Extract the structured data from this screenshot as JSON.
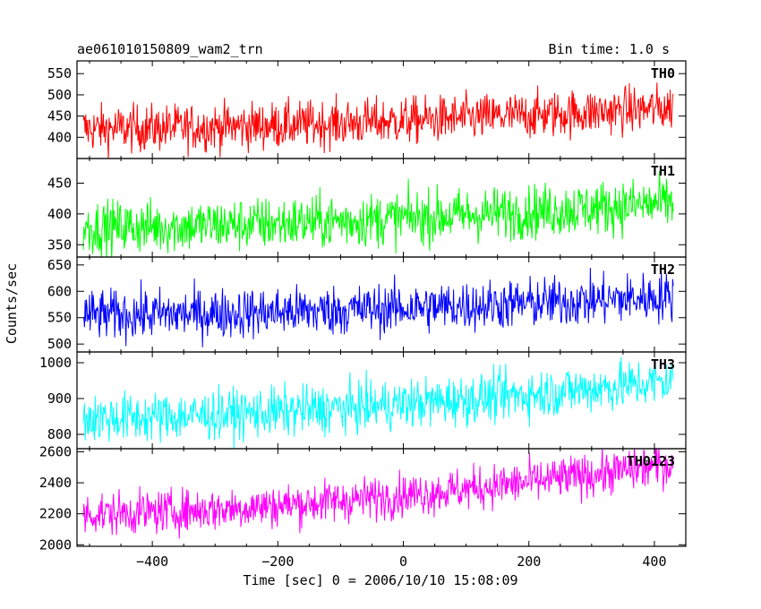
{
  "title_left": "ae061010150809_wam2_trn",
  "title_right": "Bin time: 1.0 s",
  "ylabel": "Counts/sec",
  "xlabel": "Time [sec] 0 = 2006/10/10 15:08:09",
  "chart_data": {
    "type": "line",
    "xlim": [
      -520,
      450
    ],
    "x_data_range": [
      -510,
      430
    ],
    "x_ticks": [
      -400,
      -200,
      0,
      200,
      400
    ],
    "x_tick_labels": [
      "−400",
      "−200",
      "0",
      "200",
      "400"
    ],
    "panels": [
      {
        "name": "TH0",
        "color": "#ff0000",
        "ylim": [
          350,
          580
        ],
        "y_ticks": [
          400,
          450,
          500,
          550
        ],
        "y_tick_labels": [
          "400",
          "450",
          "500",
          "550"
        ],
        "trend_start": 420,
        "trend_end": 470,
        "noise": 28
      },
      {
        "name": "TH1",
        "color": "#00ff00",
        "ylim": [
          330,
          490
        ],
        "y_ticks": [
          350,
          400,
          450
        ],
        "y_tick_labels": [
          "350",
          "400",
          "450"
        ],
        "trend_start": 378,
        "trend_end": 418,
        "noise": 22
      },
      {
        "name": "TH2",
        "color": "#0000ff",
        "ylim": [
          485,
          665
        ],
        "y_ticks": [
          500,
          550,
          600,
          650
        ],
        "y_tick_labels": [
          "500",
          "550",
          "600",
          "650"
        ],
        "trend_start": 555,
        "trend_end": 590,
        "noise": 24
      },
      {
        "name": "TH3",
        "color": "#00ffff",
        "ylim": [
          760,
          1030
        ],
        "y_ticks": [
          800,
          900,
          1000
        ],
        "y_tick_labels": [
          "800",
          "900",
          "1000"
        ],
        "trend_start": 845,
        "trend_end": 950,
        "noise": 35
      },
      {
        "name": "TH0123",
        "color": "#ff00ff",
        "ylim": [
          1990,
          2620
        ],
        "y_ticks": [
          2000,
          2200,
          2400,
          2600
        ],
        "y_tick_labels": [
          "2000",
          "2200",
          "2400",
          "2600"
        ],
        "trend_start": 2200,
        "trend_end": 2520,
        "noise": 70
      }
    ]
  }
}
